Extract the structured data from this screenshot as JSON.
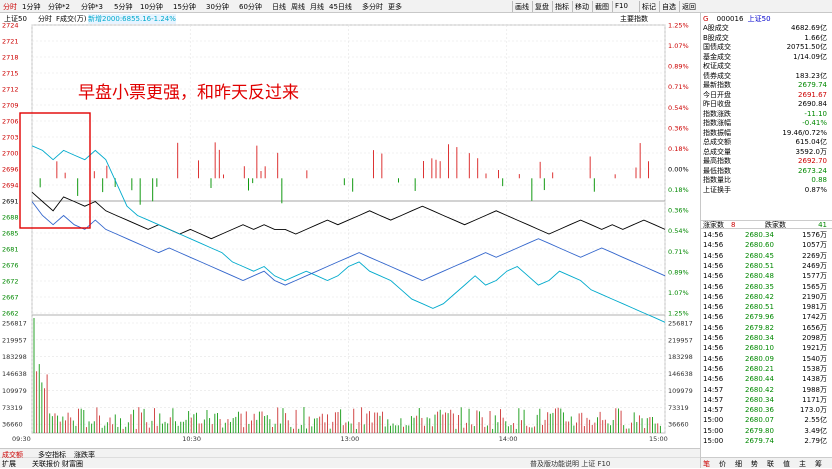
{
  "toolbar": {
    "periods": [
      "分时",
      "1分钟",
      "分钟*2",
      "分钟*3",
      "5分钟",
      "10分钟",
      "15分钟",
      "30分钟",
      "60分钟",
      "日线",
      "周线",
      "月线",
      "45日线",
      "多分时",
      "更多"
    ],
    "right_tools": [
      "画线",
      "复盘",
      "指标",
      "移动",
      "截图",
      "F10",
      "标记",
      "自选",
      "返回"
    ]
  },
  "infobar": {
    "index_name": "上证50",
    "tabs": [
      "分时",
      "F成交(万)",
      "指标"
    ],
    "overlay_label": "新增2000:6855.16-1.24%",
    "right_label": "主要指数"
  },
  "chart_data": {
    "type": "line",
    "title": "",
    "prev_close": 2691,
    "price_axis_left": [
      "2724",
      "2721",
      "2718",
      "2715",
      "2712",
      "2709",
      "2706",
      "2703",
      "2700",
      "2696",
      "2694",
      "2691",
      "2688",
      "2685",
      "2681",
      "2676",
      "2672",
      "2667",
      "2662"
    ],
    "pct_axis_right": [
      "1.25%",
      "1.07%",
      "0.89%",
      "0.71%",
      "0.54%",
      "0.36%",
      "0.18%",
      "0.00%",
      "0.18%",
      "0.36%",
      "0.54%",
      "0.71%",
      "0.89%",
      "1.07%",
      "1.25%"
    ],
    "volume_axis": [
      "256817",
      "219957",
      "183298",
      "146638",
      "109979",
      "73319",
      "36660"
    ],
    "time_axis": [
      "09:30",
      "10:30",
      "13:00",
      "14:00",
      "15:00"
    ],
    "annotation": "早盘小票更强，和昨天反过来",
    "series": [
      {
        "color": "#000000",
        "values": [
          2688,
          2686,
          2684,
          2687,
          2686,
          2685,
          2686,
          2684,
          2683,
          2682,
          2681,
          2680,
          2681,
          2680,
          2679,
          2680,
          2679,
          2678,
          2679,
          2680,
          2681,
          2680,
          2681,
          2680,
          2680,
          2679,
          2680,
          2681,
          2682,
          2681,
          2682,
          2683,
          2684,
          2683,
          2682,
          2683,
          2684,
          2685,
          2684,
          2683,
          2682,
          2681,
          2682,
          2683,
          2684,
          2683,
          2682,
          2681,
          2680,
          2679,
          2680,
          2681,
          2682,
          2681,
          2680,
          2681,
          2680,
          2681,
          2682,
          2681,
          2680
        ]
      },
      {
        "color": "#00aacc",
        "values": [
          2698,
          2697,
          2695,
          2697,
          2696,
          2695,
          2697,
          2695,
          2690,
          2685,
          2683,
          2682,
          2681,
          2680,
          2679,
          2678,
          2677,
          2676,
          2675,
          2673,
          2672,
          2671,
          2672,
          2670,
          2669,
          2670,
          2671,
          2670,
          2669,
          2670,
          2672,
          2673,
          2671,
          2670,
          2669,
          2667,
          2665,
          2664,
          2663,
          2664,
          2666,
          2668,
          2670,
          2668,
          2669,
          2671,
          2672,
          2670,
          2668,
          2669,
          2671,
          2670,
          2669,
          2667,
          2666,
          2665,
          2664,
          2663,
          2662,
          2661,
          2660
        ]
      },
      {
        "color": "#3366cc",
        "values": [
          2686,
          2683,
          2681,
          2683,
          2681,
          2680,
          2682,
          2680,
          2679,
          2678,
          2677,
          2676,
          2675,
          2676,
          2675,
          2674,
          2673,
          2672,
          2671,
          2670,
          2669,
          2670,
          2671,
          2669,
          2668,
          2669,
          2670,
          2671,
          2672,
          2673,
          2674,
          2675,
          2674,
          2673,
          2672,
          2671,
          2670,
          2669,
          2670,
          2671,
          2672,
          2673,
          2674,
          2675,
          2674,
          2675,
          2676,
          2677,
          2678,
          2677,
          2676,
          2675,
          2674,
          2675,
          2676,
          2675,
          2674,
          2673,
          2672,
          2671,
          2670
        ]
      }
    ]
  },
  "panel": {
    "code": "000016",
    "name": "上证50",
    "stats": [
      {
        "k": "A股成交",
        "v": "4682.69亿",
        "c": ""
      },
      {
        "k": "B股成交",
        "v": "1.66亿",
        "c": ""
      },
      {
        "k": "国债成交",
        "v": "20751.50亿",
        "c": ""
      },
      {
        "k": "基金成交",
        "v": "1/14.09亿",
        "c": ""
      },
      {
        "k": "权证成交",
        "v": "",
        "c": ""
      },
      {
        "k": "债券成交",
        "v": "183.23亿",
        "c": ""
      },
      {
        "k": "最新指数",
        "v": "2679.74",
        "c": "green"
      },
      {
        "k": "今日开盘",
        "v": "2691.67",
        "c": "red"
      },
      {
        "k": "昨日收盘",
        "v": "2690.84",
        "c": ""
      },
      {
        "k": "指数涨跌",
        "v": "-11.10",
        "c": "green"
      },
      {
        "k": "指数涨幅",
        "v": "-0.41%",
        "c": "green"
      },
      {
        "k": "指数振幅",
        "v": "19.46/0.72%",
        "c": ""
      },
      {
        "k": "总成交额",
        "v": "615.04亿",
        "c": ""
      },
      {
        "k": "总成交量",
        "v": "3592.0万",
        "c": ""
      },
      {
        "k": "最高指数",
        "v": "2692.70",
        "c": "red"
      },
      {
        "k": "最低指数",
        "v": "2673.24",
        "c": "green"
      },
      {
        "k": "指数量比",
        "v": "0.88",
        "c": "green"
      },
      {
        "k": "上证换手",
        "v": "0.87%",
        "c": ""
      }
    ],
    "updown": {
      "up_label": "涨家数",
      "up": "8",
      "down_label": "跌家数",
      "down": "41"
    },
    "ticks": [
      {
        "t": "14:56",
        "p": "2680.34",
        "q": "1576万"
      },
      {
        "t": "14:56",
        "p": "2680.60",
        "q": "1057万"
      },
      {
        "t": "14:56",
        "p": "2680.45",
        "q": "2269万"
      },
      {
        "t": "14:56",
        "p": "2680.51",
        "q": "2469万"
      },
      {
        "t": "14:56",
        "p": "2680.48",
        "q": "1577万"
      },
      {
        "t": "14:56",
        "p": "2680.35",
        "q": "1565万"
      },
      {
        "t": "14:56",
        "p": "2680.42",
        "q": "2190万"
      },
      {
        "t": "14:56",
        "p": "2680.51",
        "q": "1981万"
      },
      {
        "t": "14:56",
        "p": "2679.96",
        "q": "1742万"
      },
      {
        "t": "14:56",
        "p": "2679.82",
        "q": "1656万"
      },
      {
        "t": "14:56",
        "p": "2680.34",
        "q": "2098万"
      },
      {
        "t": "14:56",
        "p": "2680.10",
        "q": "1921万"
      },
      {
        "t": "14:56",
        "p": "2680.09",
        "q": "1540万"
      },
      {
        "t": "14:56",
        "p": "2680.21",
        "q": "1538万"
      },
      {
        "t": "14:56",
        "p": "2680.44",
        "q": "1438万"
      },
      {
        "t": "14:57",
        "p": "2680.42",
        "q": "1988万"
      },
      {
        "t": "14:57",
        "p": "2680.34",
        "q": "1171万"
      },
      {
        "t": "14:57",
        "p": "2680.36",
        "q": "173.0万"
      },
      {
        "t": "15:00",
        "p": "2680.07",
        "q": "2.55亿"
      },
      {
        "t": "15:00",
        "p": "2679.80",
        "q": "3.49亿"
      },
      {
        "t": "15:00",
        "p": "2679.74",
        "q": "2.79亿"
      }
    ],
    "tabs": [
      "笔",
      "价",
      "细",
      "势",
      "联",
      "值",
      "主",
      "筹"
    ]
  },
  "bottombar": {
    "tabs1": [
      "成交额",
      "多空指标",
      "涨跌率"
    ],
    "tabs2": [
      "扩展",
      "关联报价",
      "财富圈"
    ],
    "right_text": "普及版功能说明 上证 F10"
  }
}
